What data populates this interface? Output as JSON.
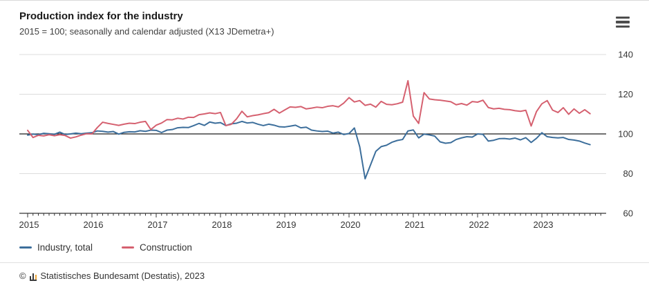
{
  "header": {
    "title": "Production index for the industry",
    "subtitle": "2015 = 100; seasonally and calendar adjusted (X13 JDemetra+)"
  },
  "legend": {
    "items": [
      {
        "label": "Industry, total",
        "color": "#3c6e9b"
      },
      {
        "label": "Construction",
        "color": "#d5606f"
      }
    ]
  },
  "footer": {
    "copyright": "©",
    "source": "Statistisches Bundesamt (Destatis), 2023"
  },
  "chart_data": {
    "type": "line",
    "title": "Production index for the industry",
    "subtitle": "2015 = 100; seasonally and calendar adjusted (X13 JDemetra+)",
    "x_unit": "month",
    "start_month": "2015-01",
    "end_month": "2023-10",
    "x_tick_labels": [
      "2015",
      "2016",
      "2017",
      "2018",
      "2019",
      "2020",
      "2021",
      "2022",
      "2023"
    ],
    "y_ticks": [
      140,
      120,
      100,
      80,
      60
    ],
    "y_gridlines": [
      140,
      120,
      80
    ],
    "baseline": 100,
    "ylim": [
      60,
      140
    ],
    "grid": "horizontal",
    "legend_position": "bottom",
    "axis_color": "#333333",
    "gridline_color": "#dcdcdc",
    "baseline_color": "#1a1a1a",
    "series": [
      {
        "name": "Industry, total",
        "color": "#3c6e9b",
        "values": [
          99.4,
          99.9,
          99.6,
          100.3,
          100.1,
          99.8,
          100.9,
          99.7,
          100.0,
          100.4,
          100.1,
          100.4,
          100.6,
          101.5,
          101.3,
          100.9,
          101.2,
          99.9,
          100.8,
          101.1,
          101.0,
          101.6,
          101.3,
          101.9,
          101.8,
          100.7,
          101.9,
          102.2,
          103.1,
          103.3,
          103.2,
          104.2,
          105.3,
          104.3,
          106.0,
          105.4,
          105.7,
          104.2,
          105.1,
          105.4,
          106.3,
          105.5,
          105.8,
          104.9,
          104.2,
          104.9,
          104.4,
          103.6,
          103.5,
          103.9,
          104.4,
          103.1,
          103.4,
          101.9,
          101.5,
          101.2,
          101.4,
          100.4,
          100.9,
          99.7,
          100.2,
          103.0,
          93.5,
          77.4,
          84.3,
          91.2,
          93.6,
          94.3,
          95.8,
          96.7,
          97.2,
          101.5,
          102.0,
          98.0,
          99.9,
          99.5,
          98.9,
          96.0,
          95.3,
          95.6,
          97.2,
          98.0,
          98.6,
          98.4,
          100.0,
          99.8,
          96.4,
          96.8,
          97.6,
          97.7,
          97.4,
          97.9,
          97.0,
          98.1,
          95.7,
          97.8,
          100.6,
          98.6,
          98.2,
          98.0,
          98.2,
          97.2,
          96.9,
          96.4,
          95.4,
          94.6
        ]
      },
      {
        "name": "Construction",
        "color": "#d5606f",
        "values": [
          101.8,
          98.2,
          99.3,
          99.0,
          99.6,
          99.1,
          99.6,
          99.2,
          97.9,
          98.5,
          99.4,
          100.1,
          100.0,
          103.2,
          105.9,
          105.3,
          104.8,
          104.3,
          104.9,
          105.4,
          105.2,
          105.9,
          106.3,
          102.2,
          104.4,
          105.5,
          107.2,
          107.1,
          107.9,
          107.5,
          108.4,
          108.3,
          109.7,
          110.1,
          110.6,
          110.2,
          110.8,
          104.2,
          104.8,
          107.6,
          111.4,
          108.6,
          109.2,
          109.6,
          110.2,
          110.7,
          112.4,
          110.5,
          112.1,
          113.6,
          113.4,
          113.8,
          112.6,
          113.0,
          113.5,
          113.2,
          113.9,
          114.2,
          113.6,
          115.5,
          118.3,
          116.1,
          116.8,
          114.4,
          115.0,
          113.5,
          116.4,
          114.9,
          114.7,
          115.2,
          116.0,
          126.8,
          109.0,
          105.3,
          120.8,
          117.6,
          117.2,
          117.0,
          116.6,
          116.2,
          114.7,
          115.3,
          114.5,
          116.3,
          116.0,
          117.0,
          113.3,
          112.6,
          112.9,
          112.4,
          112.2,
          111.7,
          111.4,
          111.9,
          104.0,
          111.3,
          115.2,
          116.8,
          112.0,
          110.8,
          113.2,
          109.9,
          112.6,
          110.4,
          112.2,
          110.2
        ]
      }
    ]
  }
}
